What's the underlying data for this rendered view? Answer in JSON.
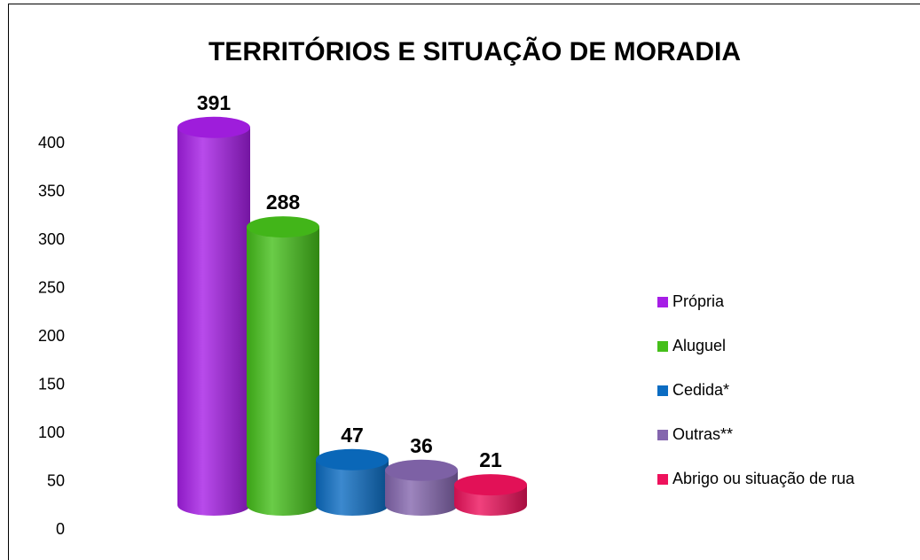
{
  "chart_data": {
    "type": "bar3d",
    "title": "TERRITÓRIOS E SITUAÇÃO DE MORADIA",
    "categories": [
      "Própria",
      "Aluguel",
      "Cedida*",
      "Outras**",
      "Abrigo ou situação de rua"
    ],
    "values": [
      391,
      288,
      47,
      36,
      21
    ],
    "colors": [
      "#a61ee6",
      "#45bf1a",
      "#0b6cc2",
      "#8466ae",
      "#ee125c"
    ],
    "ylim": [
      0,
      400
    ],
    "yticks": [
      0,
      50,
      100,
      150,
      200,
      250,
      300,
      350,
      400
    ],
    "legend": "right"
  }
}
